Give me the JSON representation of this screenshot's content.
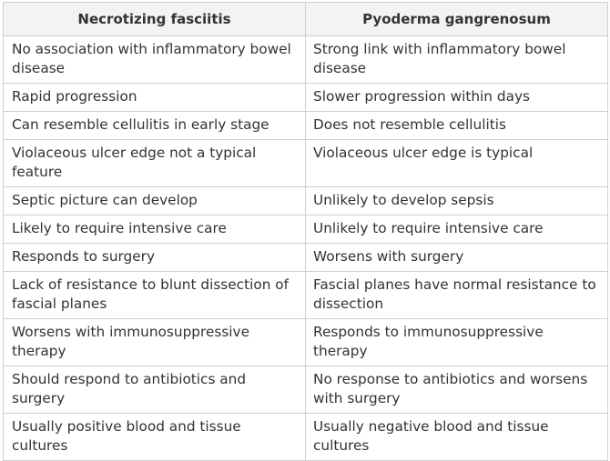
{
  "table": {
    "headers": [
      "Necrotizing fasciitis",
      "Pyoderma gangrenosum"
    ],
    "rows": [
      [
        "No association with inflammatory bowel disease",
        "Strong link with inflammatory bowel disease"
      ],
      [
        "Rapid progression",
        "Slower progression within days"
      ],
      [
        "Can resemble cellulitis in early stage",
        "Does not resemble cellulitis"
      ],
      [
        "Violaceous ulcer edge not a typical feature",
        "Violaceous ulcer edge is typical"
      ],
      [
        "Septic picture can develop",
        "Unlikely to develop sepsis"
      ],
      [
        "Likely to require intensive care",
        "Unlikely to require intensive care"
      ],
      [
        "Responds to surgery",
        "Worsens with surgery"
      ],
      [
        "Lack of resistance to blunt dissection of fascial planes",
        "Fascial planes have normal resistance to dissection"
      ],
      [
        "Worsens with immunosuppressive therapy",
        "Responds to immunosuppressive therapy"
      ],
      [
        "Should respond to antibiotics and surgery",
        "No response to antibiotics and worsens with surgery"
      ],
      [
        "Usually positive blood and tissue cultures",
        "Usually negative blood and tissue cultures"
      ]
    ]
  }
}
